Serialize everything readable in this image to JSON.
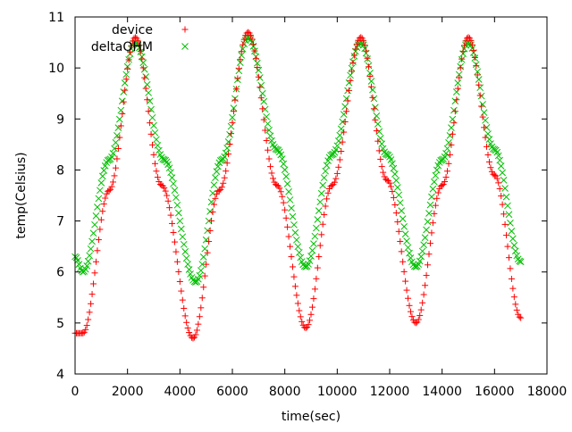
{
  "chart_data": {
    "type": "scatter",
    "title": "",
    "xlabel": "time(sec)",
    "ylabel": "temp(Celsius)",
    "xlim": [
      0,
      18000
    ],
    "ylim": [
      4,
      11
    ],
    "x_ticks": [
      0,
      2000,
      4000,
      6000,
      8000,
      10000,
      12000,
      14000,
      16000,
      18000
    ],
    "y_ticks": [
      4,
      5,
      6,
      7,
      8,
      9,
      10,
      11
    ],
    "x_tick_labels": [
      "0",
      "2000",
      "4000",
      "6000",
      "8000",
      "10000",
      "12000",
      "14000",
      "16000",
      "18000"
    ],
    "y_tick_labels": [
      "4",
      "5",
      "6",
      "7",
      "8",
      "9",
      "10",
      "11"
    ],
    "grid": false,
    "legend_position": "top-left",
    "legend": {
      "entries": [
        {
          "label": "device"
        },
        {
          "label": "deltaOHM"
        }
      ]
    },
    "series": [
      {
        "name": "device",
        "marker": "plus",
        "color": "#ff0000",
        "keypoints": [
          [
            0,
            4.8
          ],
          [
            300,
            4.8
          ],
          [
            1300,
            7.6
          ],
          [
            2300,
            10.6
          ],
          [
            3300,
            7.7
          ],
          [
            4500,
            4.7
          ],
          [
            5500,
            7.6
          ],
          [
            6600,
            10.7
          ],
          [
            7700,
            7.7
          ],
          [
            8800,
            4.9
          ],
          [
            9800,
            7.7
          ],
          [
            10900,
            10.6
          ],
          [
            11900,
            7.8
          ],
          [
            13000,
            5.0
          ],
          [
            14000,
            7.7
          ],
          [
            15000,
            10.6
          ],
          [
            16000,
            7.9
          ],
          [
            17000,
            5.1
          ]
        ]
      },
      {
        "name": "deltaOHM",
        "marker": "cross",
        "color": "#00c000",
        "keypoints": [
          [
            0,
            6.3
          ],
          [
            300,
            6.0
          ],
          [
            1300,
            8.2
          ],
          [
            2300,
            10.5
          ],
          [
            3400,
            8.2
          ],
          [
            4600,
            5.8
          ],
          [
            5600,
            8.2
          ],
          [
            6600,
            10.6
          ],
          [
            7700,
            8.4
          ],
          [
            8800,
            6.1
          ],
          [
            9800,
            8.3
          ],
          [
            10900,
            10.5
          ],
          [
            11900,
            8.3
          ],
          [
            13000,
            6.1
          ],
          [
            14000,
            8.2
          ],
          [
            15000,
            10.5
          ],
          [
            16000,
            8.4
          ],
          [
            17000,
            6.2
          ]
        ]
      }
    ]
  }
}
